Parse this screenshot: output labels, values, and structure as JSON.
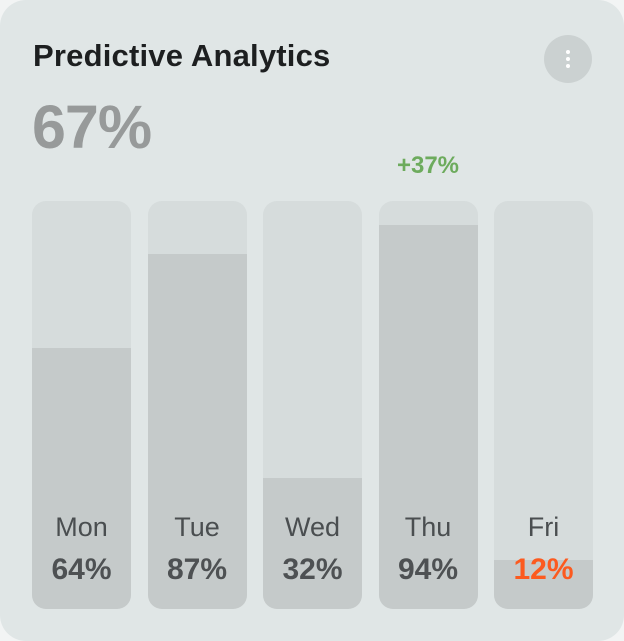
{
  "card": {
    "title": "Predictive Analytics",
    "headline_value": "67%",
    "menu_icon": "more-vertical-icon"
  },
  "colors": {
    "card_background": "#e0e6e6",
    "bar_track": "#d6dcdc",
    "bar_fill": "#c5caca",
    "headline": "#979a9a",
    "positive_change": "#6dab5d",
    "low_value": "#fc5a1f"
  },
  "chart_data": {
    "type": "bar",
    "title": "Predictive Analytics",
    "categories": [
      "Mon",
      "Tue",
      "Wed",
      "Thu",
      "Fri"
    ],
    "values": [
      64,
      87,
      32,
      94,
      12
    ],
    "value_labels": [
      "64%",
      "87%",
      "32%",
      "94%",
      "12%"
    ],
    "ylim": [
      0,
      100
    ],
    "grid": false,
    "highlight_low_index": 4,
    "annotation": {
      "category": "Thu",
      "text": "+37%"
    }
  }
}
